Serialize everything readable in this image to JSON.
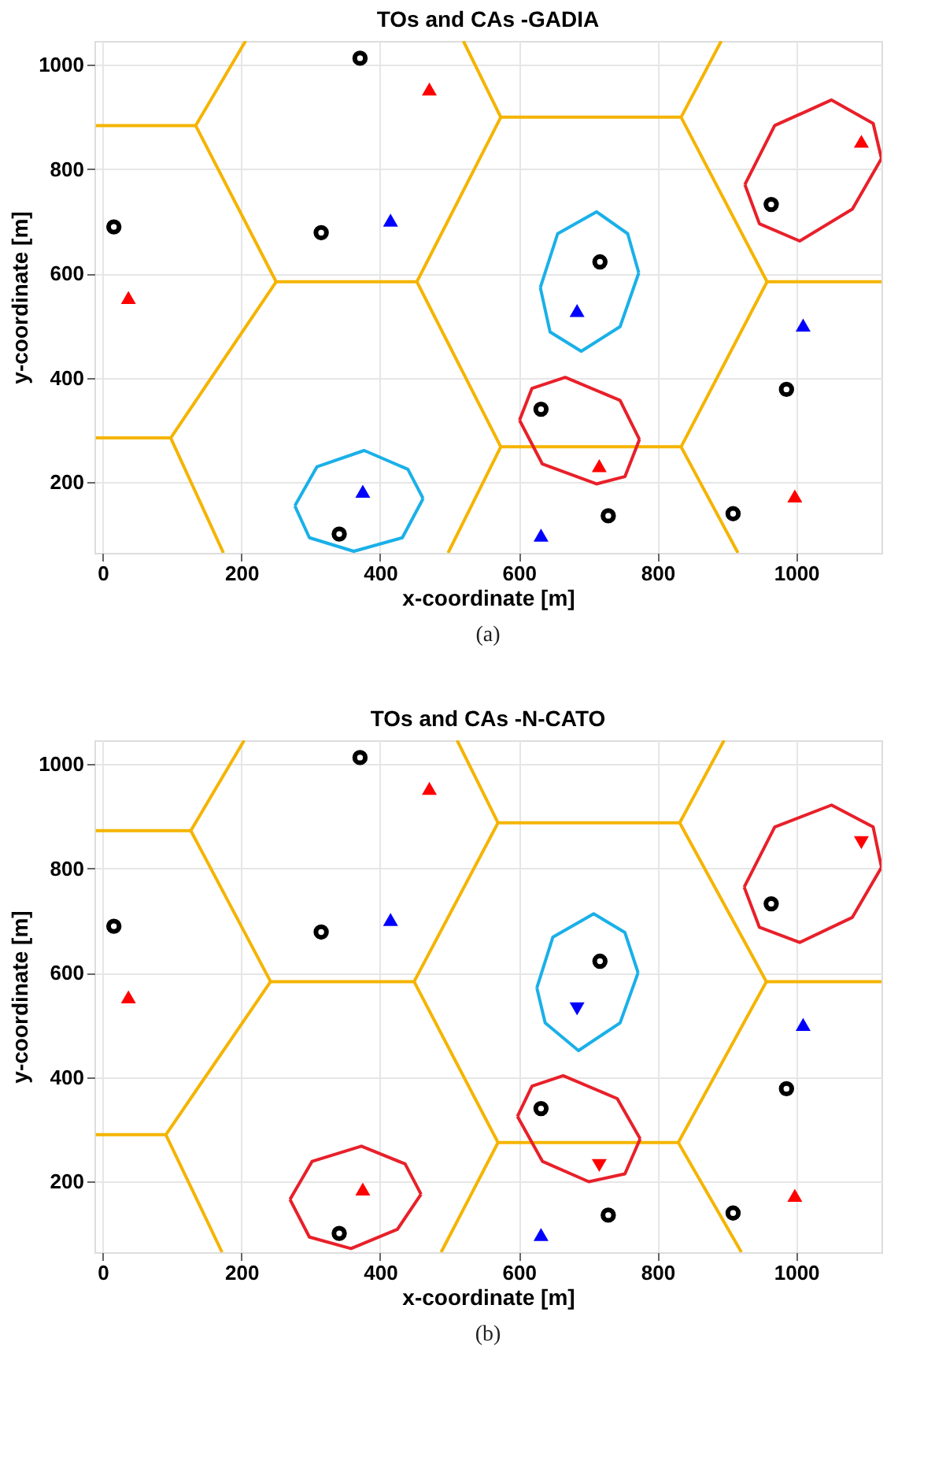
{
  "chart_data": [
    {
      "type": "scatter",
      "title": "TOs and CAs -GADIA",
      "xlabel": "x-coordinate [m]",
      "ylabel": "y-coordinate [m]",
      "xlim": [
        -12,
        1123
      ],
      "ylim": [
        65,
        1045
      ],
      "xticks": [
        0,
        200,
        400,
        600,
        800,
        1000
      ],
      "yticks": [
        200,
        400,
        600,
        800,
        1000
      ],
      "grid": true,
      "annotations": [
        "(a)"
      ],
      "series": [
        {
          "type": "line",
          "color": "#f5b400",
          "x": [
            -10,
            134,
            250,
            453,
            574,
            834,
            958,
            1123
          ],
          "values": [
            883,
            883,
            584,
            584,
            899,
            899,
            584,
            584
          ]
        },
        {
          "type": "line",
          "color": "#f5b400",
          "x": [
            134,
            206
          ],
          "values": [
            883,
            1045
          ]
        },
        {
          "type": "line",
          "color": "#f5b400",
          "x": [
            520,
            574
          ],
          "values": [
            1045,
            899
          ]
        },
        {
          "type": "line",
          "color": "#f5b400",
          "x": [
            834,
            892
          ],
          "values": [
            899,
            1045
          ]
        },
        {
          "type": "line",
          "color": "#f5b400",
          "x": [
            250,
            98,
            -10
          ],
          "values": [
            584,
            285,
            285
          ]
        },
        {
          "type": "line",
          "color": "#f5b400",
          "x": [
            98,
            174
          ],
          "values": [
            285,
            65
          ]
        },
        {
          "type": "line",
          "color": "#f5b400",
          "x": [
            453,
            574,
            834,
            958
          ],
          "values": [
            584,
            268,
            268,
            584
          ]
        },
        {
          "type": "line",
          "color": "#f5b400",
          "x": [
            574,
            498
          ],
          "values": [
            268,
            65
          ]
        },
        {
          "type": "line",
          "color": "#f5b400",
          "x": [
            834,
            916
          ],
          "values": [
            268,
            65
          ]
        },
        {
          "type": "line",
          "color": "#e8202a",
          "x": [
            926,
            969,
            1051,
            1111,
            1123
          ],
          "values": [
            770,
            883,
            932,
            887,
            820
          ]
        },
        {
          "type": "line",
          "color": "#e8202a",
          "x": [
            926,
            947,
            1005,
            1081,
            1123
          ],
          "values": [
            770,
            695,
            662,
            723,
            820
          ]
        },
        {
          "type": "line",
          "color": "#1ab0e8",
          "x": [
            631,
            656,
            712,
            757,
            773
          ],
          "values": [
            573,
            676,
            718,
            676,
            601
          ]
        },
        {
          "type": "line",
          "color": "#1ab0e8",
          "x": [
            631,
            645,
            690,
            746,
            773
          ],
          "values": [
            573,
            488,
            451,
            498,
            601
          ]
        },
        {
          "type": "line",
          "color": "#e8202a",
          "x": [
            601,
            619,
            667,
            746,
            774
          ],
          "values": [
            319,
            380,
            401,
            357,
            282
          ]
        },
        {
          "type": "line",
          "color": "#e8202a",
          "x": [
            601,
            634,
            712,
            753,
            774
          ],
          "values": [
            319,
            235,
            197,
            211,
            282
          ]
        },
        {
          "type": "line",
          "color": "#1ab0e8",
          "x": [
            277,
            309,
            377,
            440,
            462
          ],
          "values": [
            155,
            230,
            261,
            225,
            169
          ]
        },
        {
          "type": "line",
          "color": "#1ab0e8",
          "x": [
            277,
            298,
            362,
            432,
            462
          ],
          "values": [
            155,
            94,
            68,
            94,
            169
          ]
        },
        {
          "marker": "circle",
          "color": "#000000",
          "x": [
            371,
            16,
            315,
            717,
            964,
            986,
            632,
            729,
            909,
            341
          ],
          "values": [
            1012,
            689,
            678,
            622,
            732,
            378,
            340,
            136,
            140,
            101
          ]
        },
        {
          "marker": "triangle",
          "color": "#ff0000",
          "x": [
            471,
            1094,
            37,
            716,
            998
          ],
          "values": [
            953,
            853,
            554,
            232,
            174
          ]
        },
        {
          "marker": "triangle",
          "color": "#0000ff",
          "x": [
            415,
            684,
            1010,
            375,
            632
          ],
          "values": [
            702,
            529,
            501,
            183,
            99
          ]
        }
      ]
    },
    {
      "type": "scatter",
      "title": "TOs and CAs -N-CATO",
      "xlabel": "x-coordinate [m]",
      "ylabel": "y-coordinate [m]",
      "xlim": [
        -12,
        1123
      ],
      "ylim": [
        65,
        1045
      ],
      "xticks": [
        0,
        200,
        400,
        600,
        800,
        1000
      ],
      "yticks": [
        200,
        400,
        600,
        800,
        1000
      ],
      "grid": true,
      "annotations": [
        "(b)"
      ],
      "series": [
        {
          "type": "line",
          "color": "#f5b400",
          "x": [
            -10,
            127,
            242,
            449,
            570,
            832,
            957,
            1123
          ],
          "values": [
            872,
            872,
            583,
            583,
            887,
            887,
            583,
            583
          ]
        },
        {
          "type": "line",
          "color": "#f5b400",
          "x": [
            127,
            204
          ],
          "values": [
            872,
            1045
          ]
        },
        {
          "type": "line",
          "color": "#f5b400",
          "x": [
            511,
            570
          ],
          "values": [
            1045,
            887
          ]
        },
        {
          "type": "line",
          "color": "#f5b400",
          "x": [
            832,
            896
          ],
          "values": [
            887,
            1045
          ]
        },
        {
          "type": "line",
          "color": "#f5b400",
          "x": [
            242,
            91,
            -10
          ],
          "values": [
            583,
            290,
            290
          ]
        },
        {
          "type": "line",
          "color": "#f5b400",
          "x": [
            91,
            172
          ],
          "values": [
            290,
            65
          ]
        },
        {
          "type": "line",
          "color": "#f5b400",
          "x": [
            449,
            570,
            830,
            957
          ],
          "values": [
            583,
            275,
            275,
            583
          ]
        },
        {
          "type": "line",
          "color": "#f5b400",
          "x": [
            570,
            488
          ],
          "values": [
            275,
            65
          ]
        },
        {
          "type": "line",
          "color": "#f5b400",
          "x": [
            830,
            921
          ],
          "values": [
            275,
            65
          ]
        },
        {
          "type": "line",
          "color": "#e8202a",
          "x": [
            925,
            969,
            1051,
            1111,
            1123
          ],
          "values": [
            764,
            879,
            921,
            879,
            802
          ]
        },
        {
          "type": "line",
          "color": "#e8202a",
          "x": [
            925,
            947,
            1005,
            1081,
            1123
          ],
          "values": [
            764,
            687,
            658,
            706,
            802
          ]
        },
        {
          "type": "line",
          "color": "#1ab0e8",
          "x": [
            626,
            649,
            708,
            753,
            772
          ],
          "values": [
            571,
            668,
            713,
            677,
            600
          ]
        },
        {
          "type": "line",
          "color": "#1ab0e8",
          "x": [
            626,
            638,
            686,
            746,
            772
          ],
          "values": [
            571,
            504,
            451,
            504,
            600
          ]
        },
        {
          "type": "line",
          "color": "#e8202a",
          "x": [
            598,
            619,
            664,
            742,
            775
          ],
          "values": [
            325,
            383,
            403,
            359,
            282
          ]
        },
        {
          "type": "line",
          "color": "#e8202a",
          "x": [
            598,
            634,
            701,
            753,
            775
          ],
          "values": [
            325,
            239,
            200,
            215,
            282
          ]
        },
        {
          "type": "line",
          "color": "#e8202a",
          "x": [
            270,
            302,
            373,
            436,
            459
          ],
          "values": [
            166,
            239,
            268,
            234,
            176
          ]
        },
        {
          "type": "line",
          "color": "#e8202a",
          "x": [
            270,
            298,
            358,
            425,
            459
          ],
          "values": [
            166,
            94,
            72,
            109,
            176
          ]
        },
        {
          "marker": "circle",
          "color": "#000000",
          "x": [
            371,
            16,
            315,
            717,
            964,
            986,
            632,
            729,
            909,
            341
          ],
          "values": [
            1012,
            689,
            678,
            622,
            732,
            378,
            340,
            136,
            140,
            101
          ]
        },
        {
          "marker": "triangle",
          "color": "#ff0000",
          "x": [
            471,
            37,
            998,
            375
          ],
          "values": [
            953,
            554,
            174,
            186
          ]
        },
        {
          "marker": "triangle-down",
          "color": "#ff0000",
          "x": [
            1094,
            716
          ],
          "values": [
            849,
            231
          ]
        },
        {
          "marker": "triangle",
          "color": "#0000ff",
          "x": [
            415,
            1010,
            632
          ],
          "values": [
            702,
            501,
            99
          ]
        },
        {
          "marker": "triangle-down",
          "color": "#0000ff",
          "x": [
            684
          ],
          "values": [
            531
          ]
        }
      ]
    }
  ]
}
